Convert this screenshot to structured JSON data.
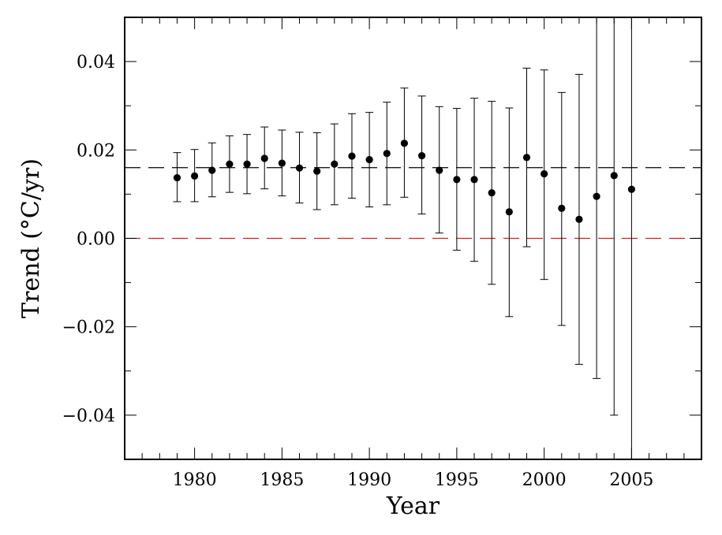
{
  "chart_data": {
    "type": "scatter",
    "title": "",
    "xlabel": "Year",
    "ylabel": "Trend (°C/yr)",
    "xlim": [
      1976,
      2009
    ],
    "ylim": [
      -0.05,
      0.05
    ],
    "xticks": [
      1980,
      1985,
      1990,
      1995,
      2000,
      2005
    ],
    "xtick_labels": [
      "1980",
      "1985",
      "1990",
      "1995",
      "2000",
      "2005"
    ],
    "yticks": [
      -0.04,
      -0.02,
      0.0,
      0.02,
      0.04
    ],
    "ytick_labels": [
      "−0.04",
      "−0.02",
      "0.00",
      "0.02",
      "0.04"
    ],
    "grid": false,
    "reference_lines": [
      {
        "y": 0.016,
        "style": "dashed",
        "color": "#000000"
      },
      {
        "y": 0.0,
        "style": "dashed",
        "color": "#cc2222"
      }
    ],
    "series": [
      {
        "marker": "filled-circle",
        "error_bars": true,
        "points": [
          {
            "x": 1979,
            "y": 0.0137,
            "lo": 0.0083,
            "hi": 0.0194
          },
          {
            "x": 1980,
            "y": 0.0141,
            "lo": 0.0083,
            "hi": 0.0201
          },
          {
            "x": 1981,
            "y": 0.0154,
            "lo": 0.0094,
            "hi": 0.0216
          },
          {
            "x": 1982,
            "y": 0.0168,
            "lo": 0.0104,
            "hi": 0.0232
          },
          {
            "x": 1983,
            "y": 0.0168,
            "lo": 0.0101,
            "hi": 0.0235
          },
          {
            "x": 1984,
            "y": 0.0181,
            "lo": 0.0112,
            "hi": 0.0252
          },
          {
            "x": 1985,
            "y": 0.017,
            "lo": 0.0096,
            "hi": 0.0245
          },
          {
            "x": 1986,
            "y": 0.0159,
            "lo": 0.008,
            "hi": 0.024
          },
          {
            "x": 1987,
            "y": 0.0152,
            "lo": 0.0065,
            "hi": 0.0239
          },
          {
            "x": 1988,
            "y": 0.0168,
            "lo": 0.0076,
            "hi": 0.0259
          },
          {
            "x": 1989,
            "y": 0.0186,
            "lo": 0.0091,
            "hi": 0.0282
          },
          {
            "x": 1990,
            "y": 0.0178,
            "lo": 0.0071,
            "hi": 0.0285
          },
          {
            "x": 1991,
            "y": 0.0192,
            "lo": 0.0076,
            "hi": 0.0308
          },
          {
            "x": 1992,
            "y": 0.0215,
            "lo": 0.0093,
            "hi": 0.034
          },
          {
            "x": 1993,
            "y": 0.0187,
            "lo": 0.0055,
            "hi": 0.0322
          },
          {
            "x": 1994,
            "y": 0.0154,
            "lo": 0.0012,
            "hi": 0.0298
          },
          {
            "x": 1995,
            "y": 0.0133,
            "lo": -0.0027,
            "hi": 0.0294
          },
          {
            "x": 1996,
            "y": 0.0133,
            "lo": -0.0052,
            "hi": 0.0317
          },
          {
            "x": 1997,
            "y": 0.0103,
            "lo": -0.0104,
            "hi": 0.031
          },
          {
            "x": 1998,
            "y": 0.006,
            "lo": -0.0177,
            "hi": 0.0295
          },
          {
            "x": 1999,
            "y": 0.0183,
            "lo": -0.0019,
            "hi": 0.0385
          },
          {
            "x": 2000,
            "y": 0.0146,
            "lo": -0.0093,
            "hi": 0.0381
          },
          {
            "x": 2001,
            "y": 0.0068,
            "lo": -0.0197,
            "hi": 0.033
          },
          {
            "x": 2002,
            "y": 0.0043,
            "lo": -0.0285,
            "hi": 0.0371
          },
          {
            "x": 2003,
            "y": 0.0095,
            "lo": -0.0317,
            "hi": 0.05
          },
          {
            "x": 2004,
            "y": 0.0142,
            "lo": -0.04,
            "hi": 0.05
          },
          {
            "x": 2005,
            "y": 0.0111,
            "lo": -0.05,
            "hi": 0.05
          }
        ]
      }
    ]
  }
}
